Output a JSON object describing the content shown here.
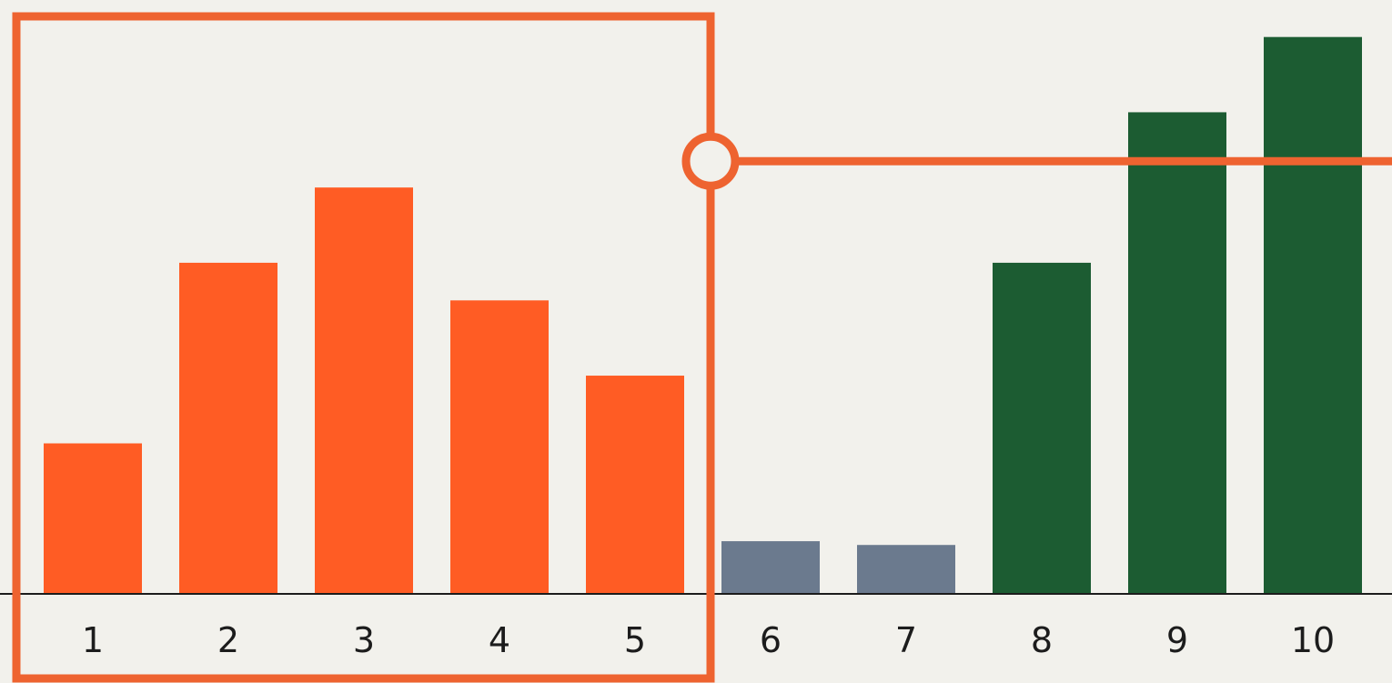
{
  "chart_data": {
    "type": "bar",
    "title": "",
    "xlabel": "",
    "ylabel": "",
    "categories": [
      "1",
      "2",
      "3",
      "4",
      "5",
      "6",
      "7",
      "8",
      "9",
      "10"
    ],
    "values": [
      4.0,
      8.8,
      10.8,
      7.8,
      5.8,
      1.4,
      1.3,
      8.8,
      12.8,
      14.8
    ],
    "ylim": [
      0,
      15.3
    ],
    "grid": false,
    "legend": "none",
    "bar_colors": [
      "#ff5c24",
      "#ff5c24",
      "#ff5c24",
      "#ff5c24",
      "#ff5c24",
      "#6b7a8e",
      "#6b7a8e",
      "#1c5c32",
      "#1c5c32",
      "#1c5c32"
    ],
    "highlight": {
      "categories": [
        "1",
        "2",
        "3",
        "4",
        "5"
      ],
      "color": "#ee6330",
      "threshold_value": 11.5
    },
    "baseline_color": "#1c1c1c"
  }
}
